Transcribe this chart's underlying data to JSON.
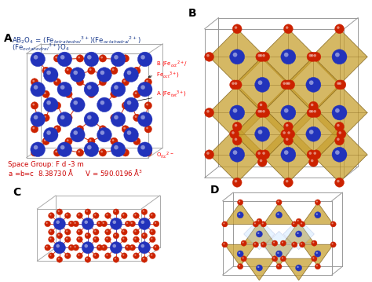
{
  "bg_color": "#ffffff",
  "text_color_blue": "#1a3a8c",
  "text_color_red": "#cc0000",
  "text_color_black": "#000000",
  "blue_atom_color": "#2233bb",
  "red_atom_color": "#cc2200",
  "bond_color_red": "#cc2200",
  "bond_color_blue": "#3344cc",
  "box_color": "#999999",
  "octa_color": "#c8a030",
  "octa_edge": "#7a5a10",
  "light_blue": "#aaccff",
  "formula_line1": "AB$_2$O$_4$ = (Fe$_{tetrahedral}$$^{3+}$)(Fe$_{octahedral}$$^{2+}$)",
  "formula_line2": "(Fe$_{octahedral}$$^{3+}$)O$_4$",
  "space_group_line1": "Space Group: F d -3 m",
  "space_group_line2": "a =b=c  8.38730 Å      V = 590.0196 Å$^3$",
  "ann_B": "B (Fe$_{oct}$$^{2+}$/\nFe$_{oct}$$^{3+}$)",
  "ann_A": "A (Fe$_{tet}$$^{3+}$)",
  "ann_O": "O$_{fcc}$$^{2-}$"
}
